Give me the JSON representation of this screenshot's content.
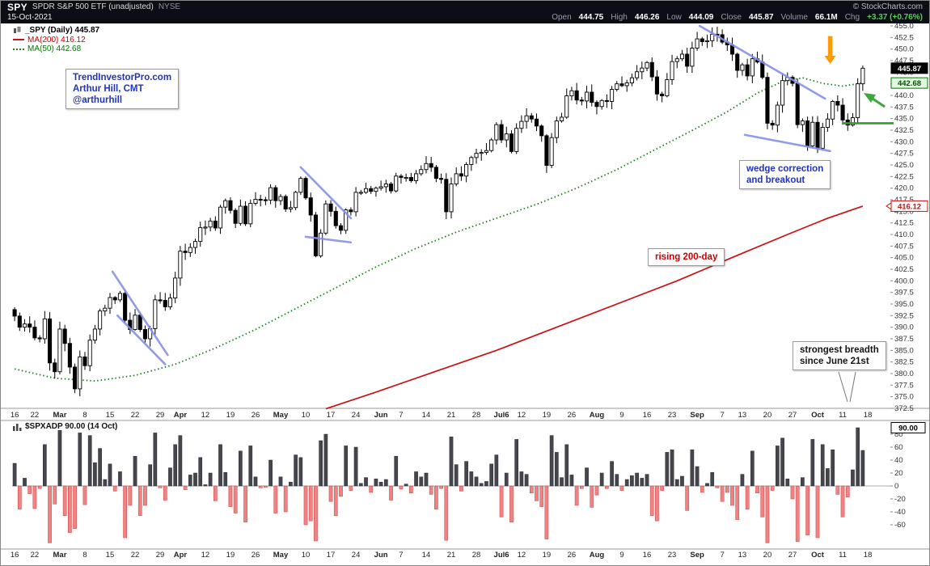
{
  "header": {
    "symbol": "SPY",
    "name": "SPDR S&P 500 ETF (unadjusted)",
    "exchange": "NYSE",
    "copyright": "© StockCharts.com",
    "date": "15-Oct-2021",
    "quote_pairs": [
      {
        "label": "Open",
        "value": "444.75"
      },
      {
        "label": "High",
        "value": "446.26"
      },
      {
        "label": "Low",
        "value": "444.09"
      },
      {
        "label": "Close",
        "value": "445.87"
      },
      {
        "label": "Volume",
        "value": "66.1M"
      },
      {
        "label": "Chg",
        "value": "+3.37 (+0.76%)"
      }
    ]
  },
  "main_legend": {
    "series": "_SPY (Daily) 445.87",
    "ma200": "MA(200) 416.12",
    "ma50": "MA(50) 442.68"
  },
  "lower_legend": {
    "text": "$SPXADP 90.00 (14 Oct)"
  },
  "annotations": {
    "credit": [
      "TrendInvestorPro.com",
      "Arthur Hill, CMT",
      "@arthurhill"
    ],
    "wedge": [
      "wedge correction",
      "and breakout"
    ],
    "rising_200": "rising 200-day",
    "breadth": [
      "strongest breadth",
      "since June 21st"
    ]
  },
  "chart_data": [
    {
      "type": "candlestick",
      "panel": "price",
      "symbol": "SPY",
      "timeframe": "Daily",
      "title": "SPY SPDR S&P 500 ETF (unadjusted) NYSE",
      "last_close": 445.87,
      "axis_tags": {
        "last": "445.87",
        "ma50": "442.68",
        "ma200": "416.12"
      },
      "ma50": {
        "period": 50,
        "last": 442.68,
        "style": "dotted",
        "color": "#1e7d1e"
      },
      "ma200": {
        "period": 200,
        "last": 416.12,
        "style": "solid",
        "color": "#cc1111"
      },
      "y_axis": {
        "min": 372.5,
        "max": 455.0,
        "step": 2.5
      },
      "x_labels": [
        {
          "t": "16",
          "d": 0
        },
        {
          "t": "22",
          "d": 4
        },
        {
          "t": "Mar",
          "d": 9,
          "m": 1
        },
        {
          "t": "8",
          "d": 14
        },
        {
          "t": "15",
          "d": 19
        },
        {
          "t": "22",
          "d": 24
        },
        {
          "t": "29",
          "d": 29
        },
        {
          "t": "Apr",
          "d": 33,
          "m": 1
        },
        {
          "t": "12",
          "d": 38
        },
        {
          "t": "19",
          "d": 43
        },
        {
          "t": "26",
          "d": 48
        },
        {
          "t": "May",
          "d": 53,
          "m": 1
        },
        {
          "t": "10",
          "d": 58
        },
        {
          "t": "17",
          "d": 63
        },
        {
          "t": "24",
          "d": 68
        },
        {
          "t": "Jun",
          "d": 73,
          "m": 1
        },
        {
          "t": "7",
          "d": 77
        },
        {
          "t": "14",
          "d": 82
        },
        {
          "t": "21",
          "d": 87
        },
        {
          "t": "28",
          "d": 92
        },
        {
          "t": "Jul6",
          "d": 97,
          "m": 1
        },
        {
          "t": "12",
          "d": 101
        },
        {
          "t": "19",
          "d": 106
        },
        {
          "t": "26",
          "d": 111
        },
        {
          "t": "Aug",
          "d": 116,
          "m": 1
        },
        {
          "t": "9",
          "d": 121
        },
        {
          "t": "16",
          "d": 126
        },
        {
          "t": "23",
          "d": 131
        },
        {
          "t": "Sep",
          "d": 136,
          "m": 1
        },
        {
          "t": "7",
          "d": 141
        },
        {
          "t": "13",
          "d": 145
        },
        {
          "t": "20",
          "d": 150
        },
        {
          "t": "27",
          "d": 155
        },
        {
          "t": "Oct",
          "d": 160,
          "m": 1
        },
        {
          "t": "11",
          "d": 165
        },
        {
          "t": "18",
          "d": 170
        }
      ],
      "closes": [
        392.4,
        390.0,
        390.7,
        390.0,
        387.7,
        387.5,
        391.8,
        382.3,
        380.4,
        389.6,
        386.5,
        381.4,
        376.7,
        383.6,
        381.7,
        387.2,
        389.6,
        393.5,
        394.1,
        396.4,
        395.9,
        397.3,
        391.5,
        389.5,
        392.6,
        389.5,
        387.5,
        389.7,
        395.9,
        395.8,
        394.4,
        396.3,
        400.6,
        406.4,
        406.1,
        407.2,
        408.5,
        411.5,
        411.6,
        412.9,
        411.4,
        415.9,
        417.3,
        415.2,
        412.4,
        416.1,
        412.3,
        416.7,
        417.6,
        417.5,
        417.4,
        420.1,
        417.3,
        418.2,
        415.5,
        415.8,
        419.1,
        422.1,
        417.9,
        414.2,
        405.4,
        410.3,
        416.6,
        415.0,
        411.9,
        410.9,
        415.3,
        414.9,
        419.1,
        419.1,
        419.9,
        419.3,
        420.0,
        420.3,
        420.9,
        419.4,
        422.6,
        422.3,
        422.3,
        421.6,
        423.1,
        424.0,
        425.3,
        424.5,
        422.1,
        421.9,
        414.9,
        420.9,
        423.1,
        422.6,
        425.1,
        426.6,
        427.5,
        427.7,
        428.1,
        430.4,
        433.7,
        430.4,
        431.7,
        427.9,
        432.9,
        434.4,
        435.6,
        434.9,
        433.4,
        431.3,
        424.9,
        430.9,
        434.5,
        435.3,
        439.9,
        441.0,
        439.0,
        438.8,
        440.7,
        438.5,
        437.6,
        438.9,
        438.7,
        441.3,
        442.5,
        442.1,
        442.7,
        443.8,
        445.1,
        445.9,
        447.1,
        444.0,
        440.3,
        439.9,
        443.4,
        447.3,
        447.9,
        448.9,
        446.3,
        450.2,
        452.2,
        451.6,
        451.8,
        453.2,
        453.1,
        451.5,
        450.9,
        448.9,
        445.4,
        446.6,
        444.2,
        447.9,
        447.2,
        443.9,
        434.0,
        433.6,
        437.9,
        443.2,
        443.9,
        442.6,
        433.7,
        434.5,
        429.1,
        434.2,
        428.6,
        433.1,
        434.9,
        438.7,
        437.9,
        434.7,
        433.6,
        435.2,
        442.5,
        445.87
      ],
      "ma50_anchors": [
        [
          0,
          381
        ],
        [
          8,
          379
        ],
        [
          16,
          378.4
        ],
        [
          24,
          379.6
        ],
        [
          32,
          382
        ],
        [
          40,
          385.5
        ],
        [
          48,
          389.5
        ],
        [
          56,
          394
        ],
        [
          64,
          398.5
        ],
        [
          72,
          403
        ],
        [
          80,
          407
        ],
        [
          88,
          410.5
        ],
        [
          96,
          413.5
        ],
        [
          104,
          416.5
        ],
        [
          112,
          420
        ],
        [
          120,
          424
        ],
        [
          128,
          428.5
        ],
        [
          136,
          433
        ],
        [
          142,
          436.5
        ],
        [
          148,
          440.5
        ],
        [
          153,
          443
        ],
        [
          157,
          443.8
        ],
        [
          161,
          442.6
        ],
        [
          165,
          442
        ],
        [
          169,
          442.68
        ]
      ],
      "ma200_anchors": [
        [
          62,
          372.4
        ],
        [
          72,
          376
        ],
        [
          84,
          380.5
        ],
        [
          96,
          385
        ],
        [
          108,
          390
        ],
        [
          120,
          395
        ],
        [
          132,
          400
        ],
        [
          144,
          405.5
        ],
        [
          154,
          410
        ],
        [
          162,
          413.5
        ],
        [
          169,
          416.12
        ]
      ],
      "trendline_color": "#8890e8",
      "trendlines": [
        {
          "d1": 19.5,
          "p1": 402,
          "d2": 30.5,
          "p2": 384
        },
        {
          "d1": 20.5,
          "p1": 392.5,
          "d2": 30,
          "p2": 382
        },
        {
          "d1": 57,
          "p1": 424.5,
          "d2": 67,
          "p2": 413.5
        },
        {
          "d1": 58,
          "p1": 409.5,
          "d2": 67,
          "p2": 408.3
        },
        {
          "d1": 136.5,
          "p1": 455,
          "d2": 161.5,
          "p2": 439.3
        },
        {
          "d1": 145.5,
          "p1": 431.5,
          "d2": 162.5,
          "p2": 428
        }
      ],
      "support_line": {
        "price": 434,
        "from_day": 165,
        "to_x": 1104,
        "color": "#2e9e2e"
      },
      "arrows": [
        {
          "type": "down",
          "day": 162.5,
          "from_price": 452.8,
          "to_price": 446.8,
          "color": "#ff9a00"
        },
        {
          "type": "up-left",
          "color": "#3aa83a"
        }
      ]
    },
    {
      "type": "bar",
      "panel": "breadth",
      "name": "$SPXADP",
      "last_value": 90.0,
      "last_value_date": "14 Oct",
      "ylim": [
        -97,
        96
      ],
      "y_ticks": [
        80,
        60,
        40,
        20,
        0,
        -20,
        -40,
        -60
      ],
      "pos_color": "#45454e",
      "neg_color": "#ef8282",
      "values": [
        35,
        -36,
        12,
        -12,
        -35,
        -4,
        64,
        -88,
        -28,
        86,
        -46,
        -72,
        -66,
        82,
        -29,
        78,
        36,
        58,
        10,
        34,
        -8,
        22,
        -80,
        -30,
        46,
        -46,
        -30,
        33,
        82,
        -3,
        -22,
        28,
        64,
        78,
        -6,
        17,
        20,
        44,
        2,
        20,
        -23,
        64,
        21,
        -32,
        -42,
        54,
        -56,
        62,
        14,
        -3,
        -2,
        40,
        -42,
        14,
        -40,
        6,
        48,
        44,
        -60,
        -54,
        -85,
        70,
        80,
        -24,
        -46,
        -16,
        62,
        -7,
        60,
        4,
        13,
        -10,
        11,
        6,
        10,
        -22,
        46,
        -5,
        3,
        -11,
        22,
        14,
        20,
        -13,
        -36,
        -4,
        -84,
        76,
        33,
        -8,
        38,
        22,
        14,
        4,
        7,
        34,
        48,
        -48,
        20,
        -56,
        72,
        22,
        18,
        -11,
        -23,
        -32,
        -82,
        78,
        52,
        13,
        64,
        17,
        -30,
        -4,
        28,
        -33,
        -14,
        20,
        -4,
        38,
        18,
        -7,
        10,
        16,
        20,
        12,
        18,
        -46,
        -54,
        -7,
        52,
        56,
        10,
        15,
        -38,
        56,
        30,
        -10,
        4,
        21,
        -3,
        -24,
        -10,
        -30,
        -52,
        18,
        -36,
        54,
        -11,
        -48,
        -88,
        -7,
        62,
        74,
        11,
        -20,
        -86,
        13,
        -76,
        72,
        -80,
        64,
        27,
        56,
        -13,
        -48,
        -17,
        25,
        90,
        55
      ]
    }
  ]
}
